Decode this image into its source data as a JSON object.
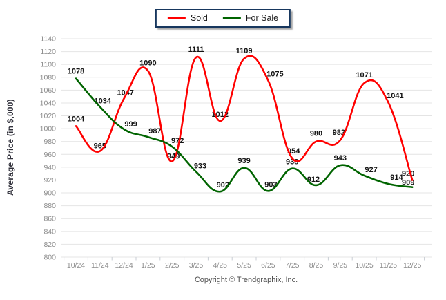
{
  "legend": {
    "items": [
      {
        "label": "Sold",
        "color": "#ff0000"
      },
      {
        "label": "For Sale",
        "color": "#006400"
      }
    ]
  },
  "chart_data": {
    "type": "line",
    "title": "",
    "xlabel": "",
    "ylabel": "Average Price (in $,000)",
    "ylim": [
      800,
      1140
    ],
    "ytick_step": 20,
    "grid": true,
    "legend_position": "top-center",
    "categories": [
      "10/24",
      "11/24",
      "12/24",
      "1/25",
      "2/25",
      "3/25",
      "4/25",
      "5/25",
      "6/25",
      "7/25",
      "8/25",
      "9/25",
      "10/25",
      "11/25",
      "12/25"
    ],
    "series": [
      {
        "name": "Sold",
        "color": "#ff0000",
        "values": [
          1004,
          965,
          1047,
          1090,
          949,
          1111,
          1012,
          1109,
          1075,
          954,
          980,
          982,
          1071,
          1041,
          920
        ],
        "label_offsets": [
          [
            0,
            -7
          ],
          [
            0,
            -4
          ],
          [
            2,
            -5
          ],
          [
            0,
            -8
          ],
          [
            2,
            -4
          ],
          [
            0,
            -8
          ],
          [
            0,
            -6
          ],
          [
            0,
            -8
          ],
          [
            10,
            -6
          ],
          [
            2,
            -7
          ],
          [
            0,
            -8
          ],
          [
            -2,
            -8
          ],
          [
            0,
            -8
          ],
          [
            10,
            -6
          ],
          [
            -6,
            -6
          ]
        ]
      },
      {
        "name": "For Sale",
        "color": "#006400",
        "values": [
          1078,
          1034,
          999,
          987,
          972,
          933,
          902,
          939,
          903,
          938,
          912,
          943,
          927,
          914,
          909
        ],
        "label_offsets": [
          [
            0,
            -7
          ],
          [
            4,
            -5
          ],
          [
            10,
            -4
          ],
          [
            10,
            -5
          ],
          [
            8,
            -5
          ],
          [
            6,
            -5
          ],
          [
            4,
            -6
          ],
          [
            0,
            -7
          ],
          [
            4,
            -6
          ],
          [
            0,
            -6
          ],
          [
            -4,
            -5
          ],
          [
            0,
            -7
          ],
          [
            10,
            -5
          ],
          [
            12,
            -6
          ],
          [
            -6,
            -3
          ]
        ]
      }
    ]
  },
  "footer": {
    "copyright": "Copyright © Trendgraphix, Inc."
  },
  "colors": {
    "grid": "#e4e4e4",
    "axis_line": "#c9ced4",
    "axis_text": "#8c8c8c",
    "label_text": "#141414",
    "legend_border": "#17375e"
  }
}
